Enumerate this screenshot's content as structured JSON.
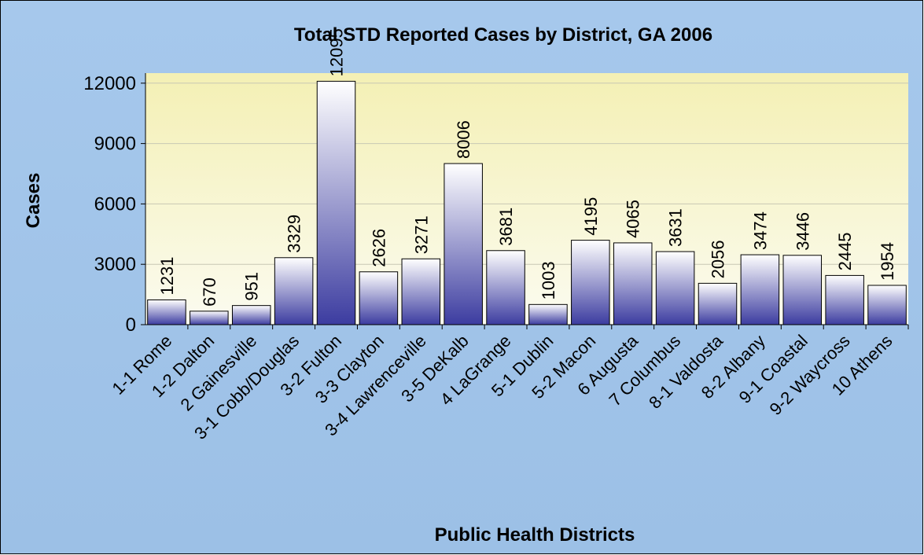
{
  "chart_data": {
    "type": "bar",
    "title": "Total STD Reported  Cases by District, GA 2006",
    "x_label": "Public Health Districts",
    "y_label": "Cases",
    "categories": [
      "1-1 Rome",
      "1-2 Dalton",
      "2 Gainesville",
      "3-1 Cobb/Douglas",
      "3-2 Fulton",
      "3-3 Clayton",
      "3-4 Lawrenceville",
      "3-5 DeKalb",
      "4 LaGrange",
      "5-1 Dublin",
      "5-2 Macon",
      "6 Augusta",
      "7 Columbus",
      "8-1 Valdosta",
      "8-2 Albany",
      "9-1 Coastal",
      "9-2 Waycross",
      "10 Athens"
    ],
    "values": [
      1231,
      670,
      951,
      3329,
      12095,
      2626,
      3271,
      8006,
      3681,
      1003,
      4195,
      4065,
      3631,
      2056,
      3474,
      3446,
      2445,
      1954
    ],
    "color": "#3c3ca0",
    "ylim": [
      0,
      12500
    ],
    "yticks": [
      0,
      3000,
      6000,
      9000,
      12000
    ],
    "grid": true
  }
}
